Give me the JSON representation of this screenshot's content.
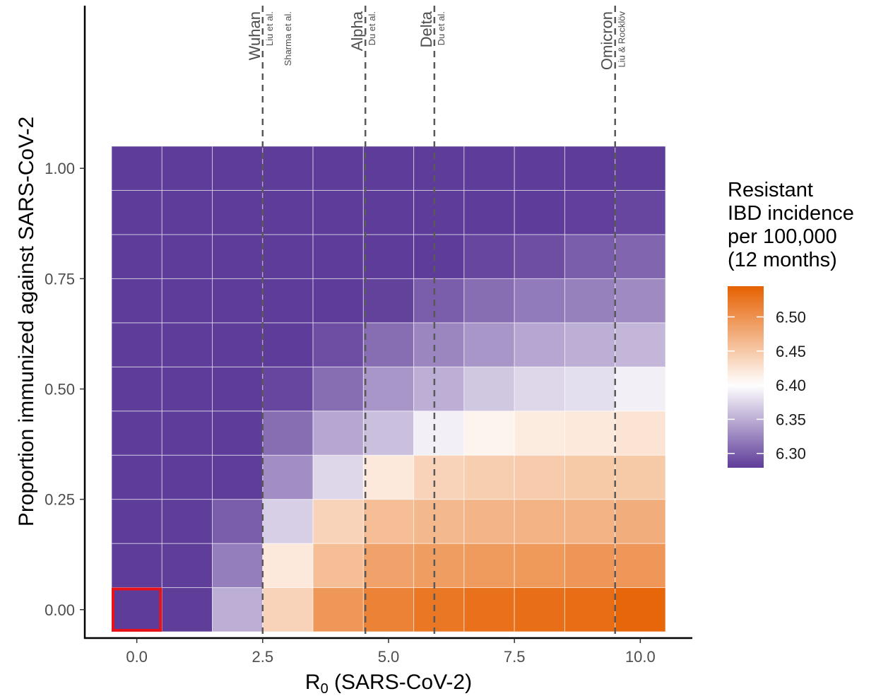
{
  "chart_data": {
    "type": "heatmap",
    "xlabel_main": "R",
    "xlabel_sub": "0",
    "xlabel_rest": " (SARS-CoV-2)",
    "ylabel": "Proportion immunized against SARS-CoV-2",
    "x_values": [
      0,
      1,
      2,
      3,
      4,
      5,
      6,
      7,
      8,
      9,
      10
    ],
    "y_values": [
      0,
      0.1,
      0.2,
      0.3,
      0.4,
      0.5,
      0.6,
      0.7,
      0.8,
      0.9,
      1.0
    ],
    "xlim": [
      -0.5,
      10.5
    ],
    "ylim": [
      -0.05,
      1.05
    ],
    "x_ticks": [
      0,
      2.5,
      5,
      7.5,
      10
    ],
    "x_tick_labels": [
      "0.0",
      "2.5",
      "5.0",
      "7.5",
      "10.0"
    ],
    "y_ticks": [
      0,
      0.25,
      0.5,
      0.75,
      1.0
    ],
    "y_tick_labels": [
      "0.00",
      "0.25",
      "0.50",
      "0.75",
      "1.00"
    ],
    "values": [
      [
        6.279,
        6.28,
        6.35,
        6.44,
        6.495,
        6.515,
        6.525,
        6.53,
        6.532,
        6.534,
        6.54
      ],
      [
        6.279,
        6.28,
        6.32,
        6.42,
        6.46,
        6.485,
        6.49,
        6.492,
        6.494,
        6.496,
        6.495
      ],
      [
        6.279,
        6.28,
        6.3,
        6.37,
        6.44,
        6.46,
        6.465,
        6.468,
        6.47,
        6.47,
        6.475
      ],
      [
        6.279,
        6.279,
        6.28,
        6.33,
        6.375,
        6.42,
        6.44,
        6.445,
        6.448,
        6.45,
        6.45
      ],
      [
        6.279,
        6.279,
        6.279,
        6.31,
        6.345,
        6.36,
        6.39,
        6.41,
        6.418,
        6.42,
        6.425
      ],
      [
        6.279,
        6.279,
        6.279,
        6.285,
        6.31,
        6.335,
        6.35,
        6.365,
        6.375,
        6.38,
        6.39
      ],
      [
        6.279,
        6.279,
        6.279,
        6.279,
        6.29,
        6.31,
        6.325,
        6.335,
        6.345,
        6.35,
        6.355
      ],
      [
        6.279,
        6.279,
        6.279,
        6.279,
        6.279,
        6.283,
        6.3,
        6.31,
        6.318,
        6.322,
        6.328
      ],
      [
        6.279,
        6.279,
        6.279,
        6.279,
        6.279,
        6.279,
        6.279,
        6.285,
        6.29,
        6.3,
        6.305
      ],
      [
        6.279,
        6.279,
        6.279,
        6.279,
        6.279,
        6.279,
        6.279,
        6.279,
        6.279,
        6.281,
        6.285
      ],
      [
        6.279,
        6.279,
        6.279,
        6.279,
        6.279,
        6.279,
        6.279,
        6.279,
        6.279,
        6.279,
        6.28
      ]
    ],
    "color_scale": {
      "min": 6.279,
      "mid": 6.4,
      "max": 6.545,
      "low_color": "#5e3c99",
      "mid_color": "#ffffff",
      "high_color": "#e66101"
    },
    "highlight_cell": {
      "x": 0,
      "y": 0,
      "color": "#e8121b"
    },
    "variants": [
      {
        "name": "Wuhan",
        "r0": 2.5,
        "sources": [
          "Liu et al.",
          "Sharma et al."
        ]
      },
      {
        "name": "Alpha",
        "r0": 4.54,
        "sources": [
          "Du et al."
        ]
      },
      {
        "name": "Delta",
        "r0": 5.91,
        "sources": [
          "Du et al."
        ]
      },
      {
        "name": "Omicron",
        "r0": 9.5,
        "sources": [
          "Liu & Rocklöv"
        ]
      }
    ],
    "legend": {
      "title_lines": [
        "Resistant",
        "IBD incidence",
        "per 100,000",
        "(12 months)"
      ],
      "ticks": [
        6.3,
        6.35,
        6.4,
        6.45,
        6.5
      ],
      "tick_labels": [
        "6.30",
        "6.35",
        "6.40",
        "6.45",
        "6.50"
      ],
      "position": "right"
    },
    "grid": false
  }
}
